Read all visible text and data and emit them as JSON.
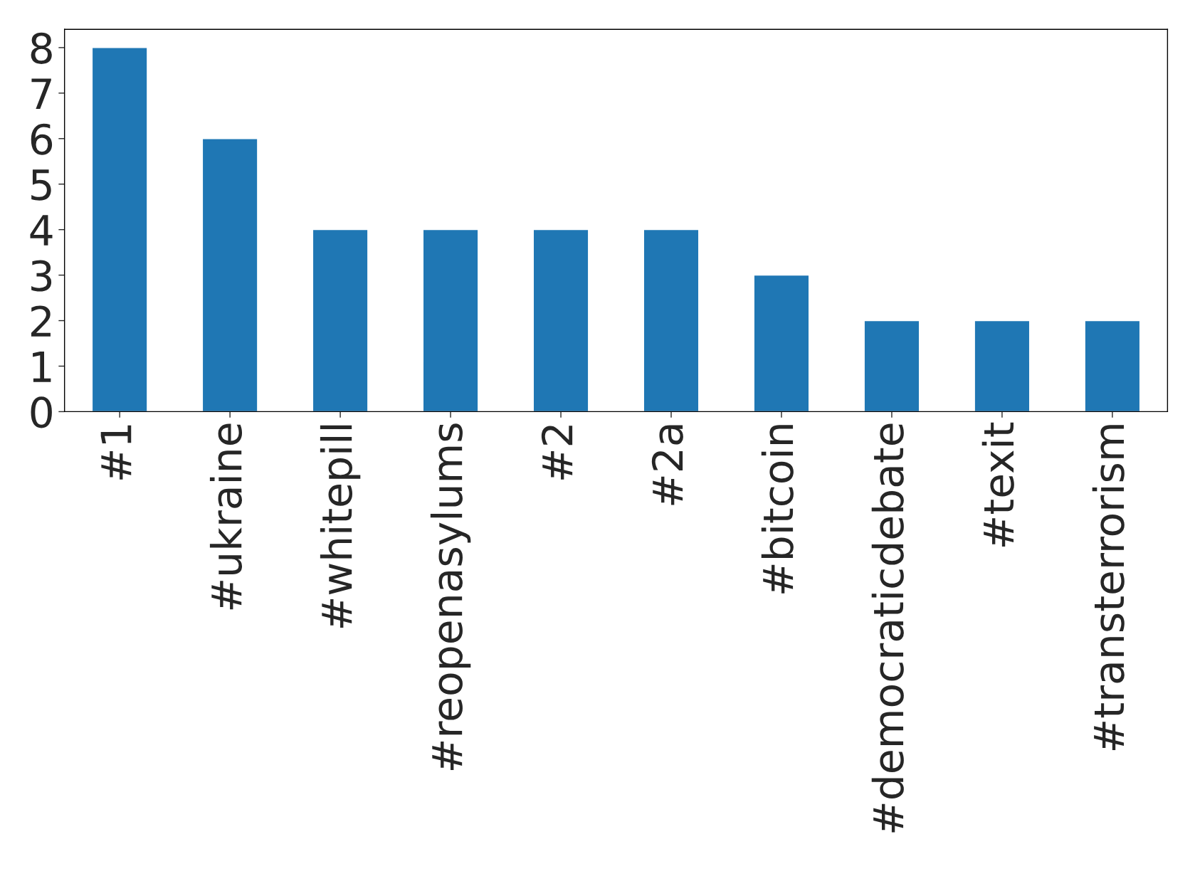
{
  "chart_data": {
    "type": "bar",
    "categories": [
      "#1",
      "#ukraine",
      "#whitepill",
      "#reopenasylums",
      "#2",
      "#2a",
      "#bitcoin",
      "#democraticdebate",
      "#texit",
      "#transterrorism"
    ],
    "values": [
      8,
      6,
      4,
      4,
      4,
      4,
      3,
      2,
      2,
      2
    ],
    "color": "#1f77b4",
    "ylim": [
      0,
      8.4
    ],
    "yticks": [
      0,
      1,
      2,
      3,
      4,
      5,
      6,
      7,
      8
    ],
    "grid": false,
    "legend": false
  }
}
